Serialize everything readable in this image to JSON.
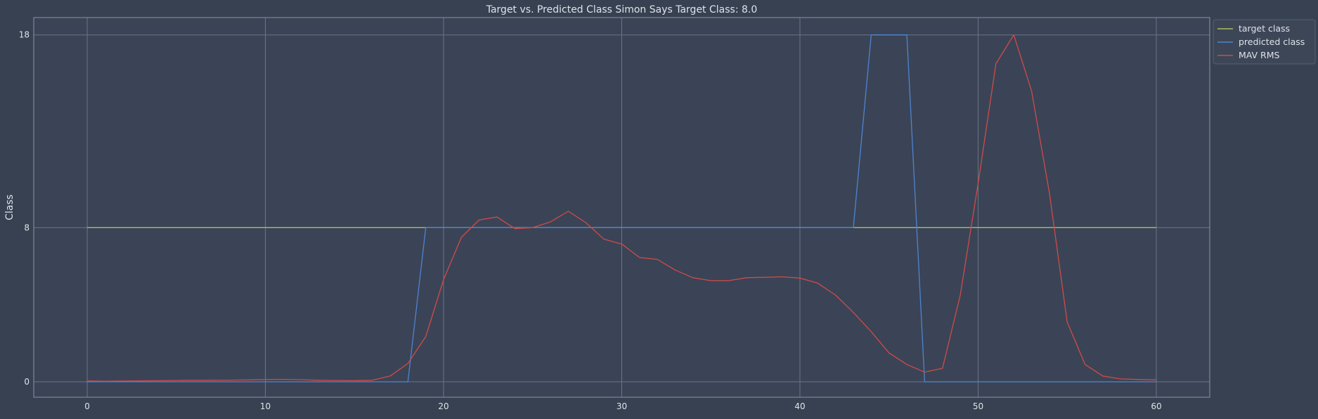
{
  "chart_data": {
    "type": "line",
    "title": "Target vs. Predicted Class Simon Says Target Class: 8.0",
    "xlabel": "",
    "ylabel": "Class",
    "xlim": [
      -3,
      63
    ],
    "ylim": [
      -0.8,
      18.9
    ],
    "xticks": [
      0,
      10,
      20,
      30,
      40,
      50,
      60
    ],
    "yticks": [
      0,
      8,
      18
    ],
    "grid": true,
    "legend_position": "top-right",
    "colors": {
      "background": "#374151",
      "plot_background": "#3a4456",
      "grid": "#6b7585",
      "axis_frame": "#8a93a3",
      "text": "#dfe3ea"
    },
    "series": [
      {
        "name": "target class",
        "color": "#a8c055",
        "x": [
          0,
          60
        ],
        "y": [
          8,
          8
        ]
      },
      {
        "name": "predicted class",
        "color": "#4f83d1",
        "x": [
          0,
          1,
          2,
          3,
          4,
          5,
          6,
          7,
          8,
          9,
          10,
          11,
          12,
          13,
          14,
          15,
          16,
          17,
          18,
          19,
          20,
          21,
          22,
          23,
          24,
          25,
          26,
          27,
          28,
          29,
          30,
          31,
          32,
          33,
          34,
          35,
          36,
          37,
          38,
          39,
          40,
          41,
          42,
          43,
          44,
          45,
          46,
          47,
          48,
          49,
          50,
          51,
          52,
          53,
          54,
          55,
          56,
          57,
          58,
          59,
          60
        ],
        "y": [
          0,
          0,
          0,
          0,
          0,
          0,
          0,
          0,
          0,
          0,
          0,
          0,
          0,
          0,
          0,
          0,
          0,
          0,
          0,
          8,
          8,
          8,
          8,
          8,
          8,
          8,
          8,
          8,
          8,
          8,
          8,
          8,
          8,
          8,
          8,
          8,
          8,
          8,
          8,
          8,
          8,
          8,
          8,
          8,
          18,
          18,
          18,
          0,
          0,
          0,
          0,
          0,
          0,
          0,
          0,
          0,
          0,
          0,
          0,
          0,
          0
        ]
      },
      {
        "name": "MAV RMS",
        "color": "#d14a4a",
        "x": [
          0,
          1,
          2,
          3,
          4,
          5,
          6,
          7,
          8,
          9,
          10,
          11,
          12,
          13,
          14,
          15,
          16,
          17,
          18,
          19,
          20,
          21,
          22,
          23,
          24,
          25,
          26,
          27,
          28,
          29,
          30,
          31,
          32,
          33,
          34,
          35,
          36,
          37,
          38,
          39,
          40,
          41,
          42,
          43,
          44,
          45,
          46,
          47,
          48,
          49,
          50,
          51,
          52,
          53,
          54,
          55,
          56,
          57,
          58,
          59,
          60
        ],
        "y": [
          0.05,
          0.03,
          0.04,
          0.05,
          0.06,
          0.07,
          0.08,
          0.08,
          0.09,
          0.1,
          0.12,
          0.13,
          0.11,
          0.08,
          0.07,
          0.06,
          0.08,
          0.3,
          0.95,
          2.35,
          5.3,
          7.5,
          8.4,
          8.55,
          7.95,
          8.0,
          8.3,
          8.85,
          8.25,
          7.4,
          7.15,
          6.45,
          6.35,
          5.8,
          5.4,
          5.25,
          5.25,
          5.4,
          5.42,
          5.45,
          5.38,
          5.12,
          4.5,
          3.6,
          2.6,
          1.5,
          0.9,
          0.5,
          0.7,
          4.5,
          10.3,
          16.5,
          18.0,
          15.1,
          9.8,
          3.1,
          0.9,
          0.3,
          0.15,
          0.12,
          0.1
        ]
      }
    ]
  }
}
